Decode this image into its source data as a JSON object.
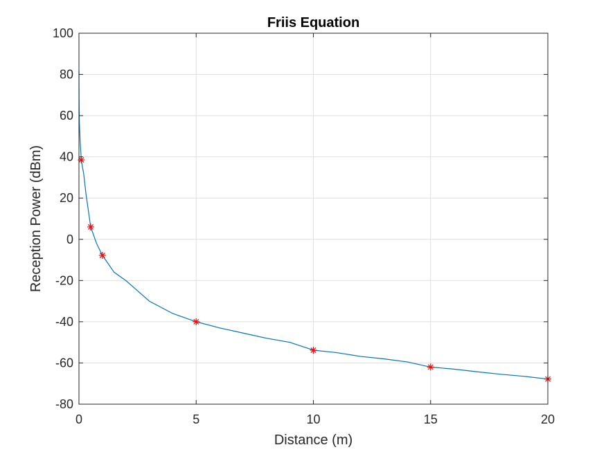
{
  "chart_data": {
    "type": "line",
    "title": "Friis Equation",
    "xlabel": "Distance (m)",
    "ylabel": "Reception Power (dBm)",
    "xlim": [
      0,
      20
    ],
    "ylim": [
      -80,
      100
    ],
    "xticks": [
      0,
      5,
      10,
      15,
      20
    ],
    "yticks": [
      -80,
      -60,
      -40,
      -20,
      0,
      20,
      40,
      60,
      80,
      100
    ],
    "grid": true,
    "legend": "none",
    "series": [
      {
        "style": "line",
        "color": "#0072BD",
        "x": [
          0.001,
          0.002,
          0.005,
          0.01,
          0.02,
          0.05,
          0.1,
          0.15,
          0.2,
          0.3,
          0.5,
          0.75,
          1,
          1.5,
          2,
          3,
          4,
          5,
          6,
          7,
          8,
          9,
          10,
          11,
          12,
          13,
          14,
          15,
          16,
          17,
          18,
          19,
          20
        ],
        "y": [
          82,
          76,
          68,
          62,
          56,
          48,
          38.5,
          35,
          32,
          22,
          6,
          -2,
          -7.8,
          -16,
          -20,
          -30,
          -36,
          -40,
          -43,
          -45.5,
          -48,
          -50,
          -53.8,
          -55,
          -56.8,
          -58,
          -59.5,
          -62,
          -63,
          -64.3,
          -65.5,
          -66.5,
          -67.8
        ]
      },
      {
        "style": "marker",
        "marker": "asterisk",
        "color": "#FF0000",
        "x": [
          0.1,
          0.5,
          1,
          5,
          10,
          15,
          20
        ],
        "y": [
          38.5,
          6,
          -7.8,
          -40,
          -53.8,
          -62,
          -67.8
        ]
      }
    ]
  }
}
